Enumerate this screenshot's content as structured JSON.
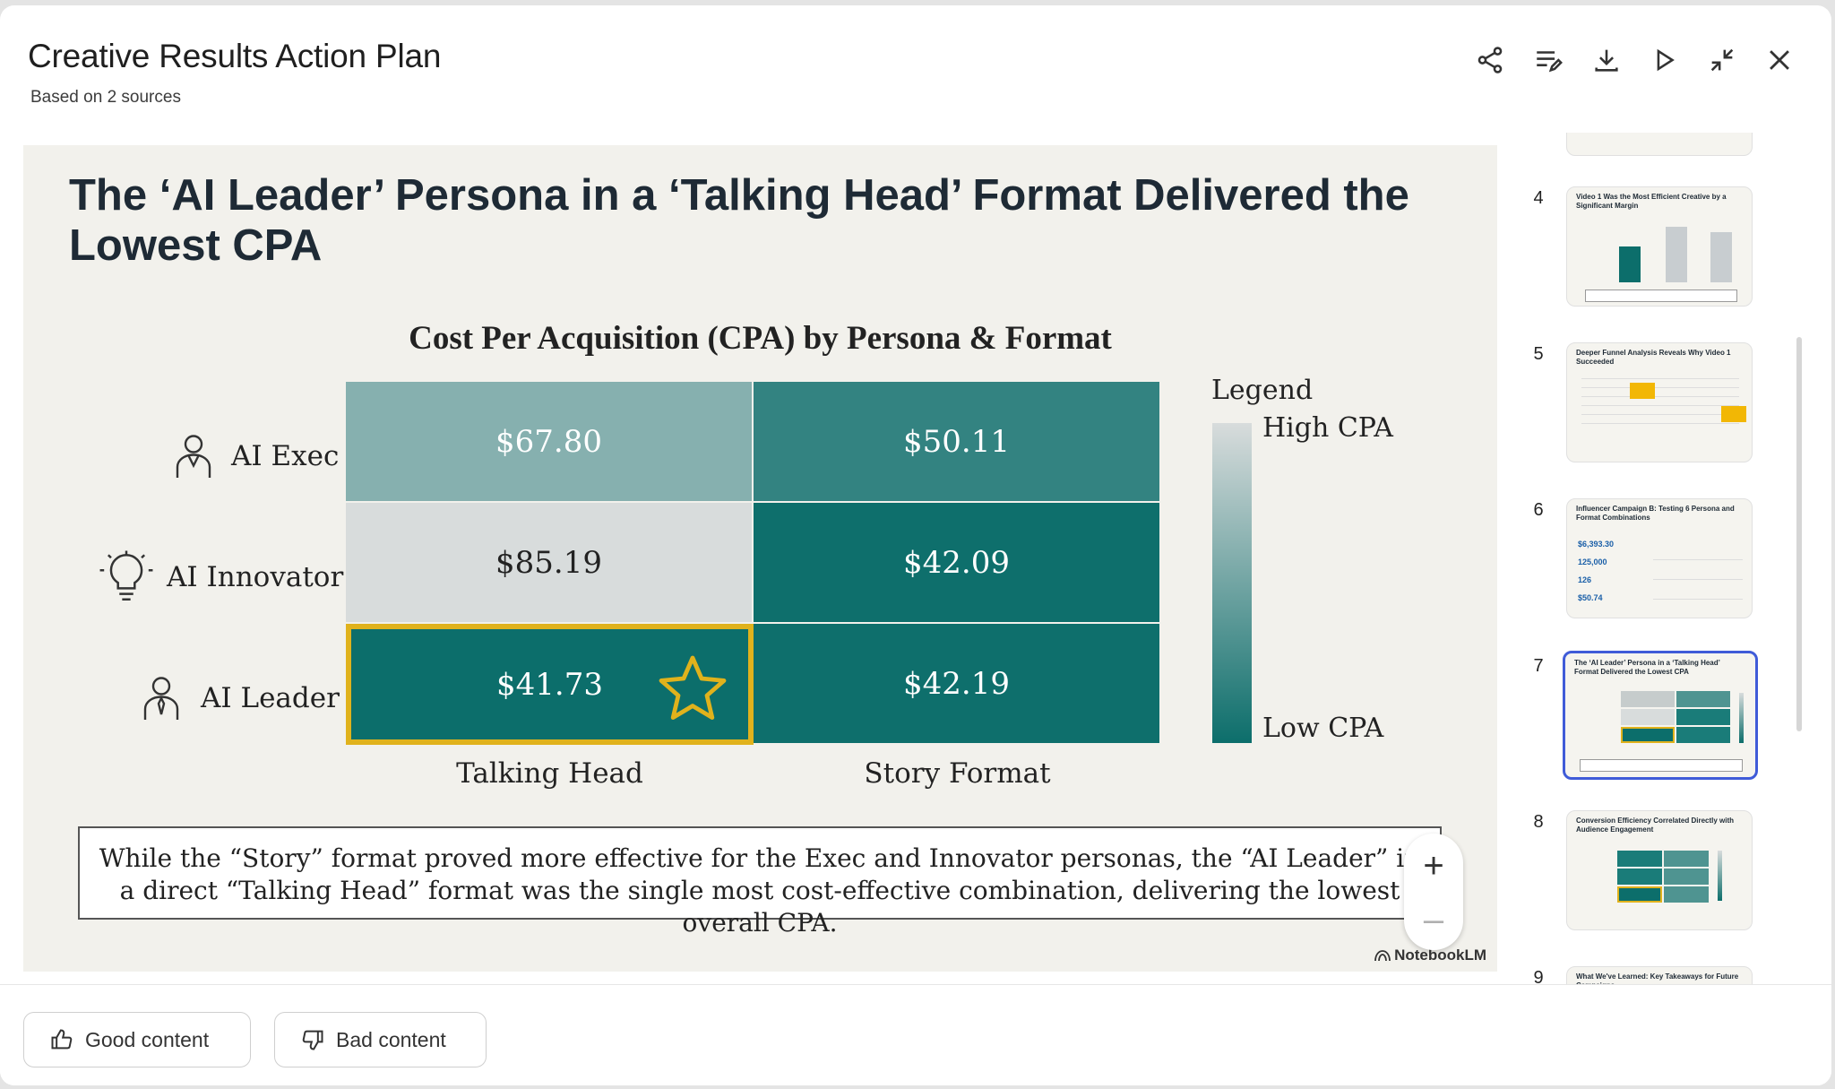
{
  "header": {
    "title": "Creative Results Action Plan",
    "subtitle": "Based on 2 sources",
    "toolbar": [
      "share-icon",
      "edit-list-icon",
      "download-icon",
      "play-icon",
      "collapse-icon",
      "close-icon"
    ]
  },
  "slide": {
    "title": "The ‘AI Leader’ Persona in a ‘Talking Head’ Format Delivered the Lowest CPA",
    "chart_data": {
      "type": "heatmap",
      "title": "Cost Per Acquisition (CPA) by Persona & Format",
      "rows": [
        "AI Exec",
        "AI Innovator",
        "AI Leader"
      ],
      "columns": [
        "Talking Head",
        "Story Format"
      ],
      "values": [
        [
          67.8,
          50.11
        ],
        [
          85.19,
          42.09
        ],
        [
          41.73,
          42.19
        ]
      ],
      "value_labels": [
        [
          "$67.80",
          "$50.11"
        ],
        [
          "$85.19",
          "$42.09"
        ],
        [
          "$41.73",
          "$42.19"
        ]
      ],
      "highlight": {
        "row": 2,
        "col": 0,
        "marker": "star-icon"
      },
      "legend": {
        "title": "Legend",
        "high_label": "High CPA",
        "low_label": "Low CPA"
      },
      "colors": {
        "high": "#d8dcdc",
        "low": "#0c6e6b",
        "highlight_border": "#e0b21c"
      }
    },
    "caption": "While the “Story” format proved more effective for the Exec and Innovator personas, the “AI Leader” in a direct “Talking Head” format was the single most cost-effective combination, delivering the lowest overall CPA.",
    "brand": "NotebookLM"
  },
  "zoom": {
    "in": "+",
    "out": "–"
  },
  "thumbnails": [
    {
      "number": "4",
      "title": "Video 1 Was the Most Efficient Creative by a Significant Margin"
    },
    {
      "number": "5",
      "title": "Deeper Funnel Analysis Reveals Why Video 1 Succeeded"
    },
    {
      "number": "6",
      "title": "Influencer Campaign B: Testing 6 Persona and Format Combinations",
      "stats": [
        "$6,393.30",
        "125,000",
        "126",
        "$50.74"
      ]
    },
    {
      "number": "7",
      "title": "The ‘AI Leader’ Persona in a ‘Talking Head’ Format Delivered the Lowest CPA"
    },
    {
      "number": "8",
      "title": "Conversion Efficiency Correlated Directly with Audience Engagement"
    },
    {
      "number": "9",
      "title": "What We've Learned: Key Takeaways for Future Campaigns"
    }
  ],
  "footer": {
    "good": "Good content",
    "bad": "Bad content"
  }
}
